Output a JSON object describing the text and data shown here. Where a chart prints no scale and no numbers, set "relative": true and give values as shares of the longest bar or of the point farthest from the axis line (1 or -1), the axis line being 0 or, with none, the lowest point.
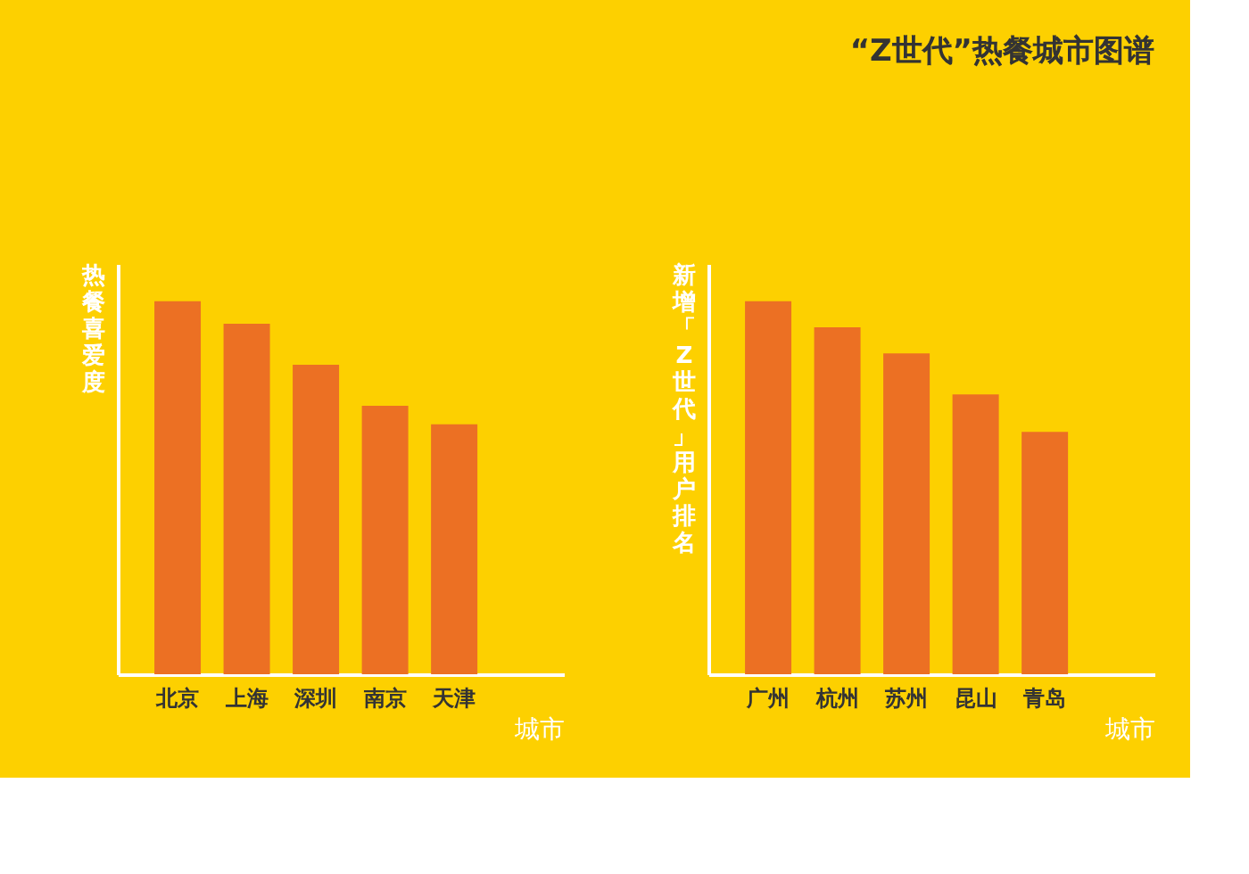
{
  "chart_data": [
    {
      "type": "bar",
      "categories": [
        "北京",
        "上海",
        "深圳",
        "南京",
        "天津"
      ],
      "values": [
        1,
        0.94,
        0.83,
        0.72,
        0.67
      ],
      "color": "#ec7023",
      "relative": true,
      "xlabel": "城市",
      "ylabel": "热餐喜爱度",
      "grid": false
    },
    {
      "type": "bar",
      "title": "“Z世代”热餐城市图谱",
      "categories": [
        "广州",
        "杭州",
        "苏州",
        "昆山",
        "青岛"
      ],
      "values": [
        1,
        0.93,
        0.86,
        0.75,
        0.65
      ],
      "color": "#ec7023",
      "relative": true,
      "xlabel": "城市",
      "ylabel": "新增「Z世代」用户排名",
      "grid": false
    }
  ]
}
